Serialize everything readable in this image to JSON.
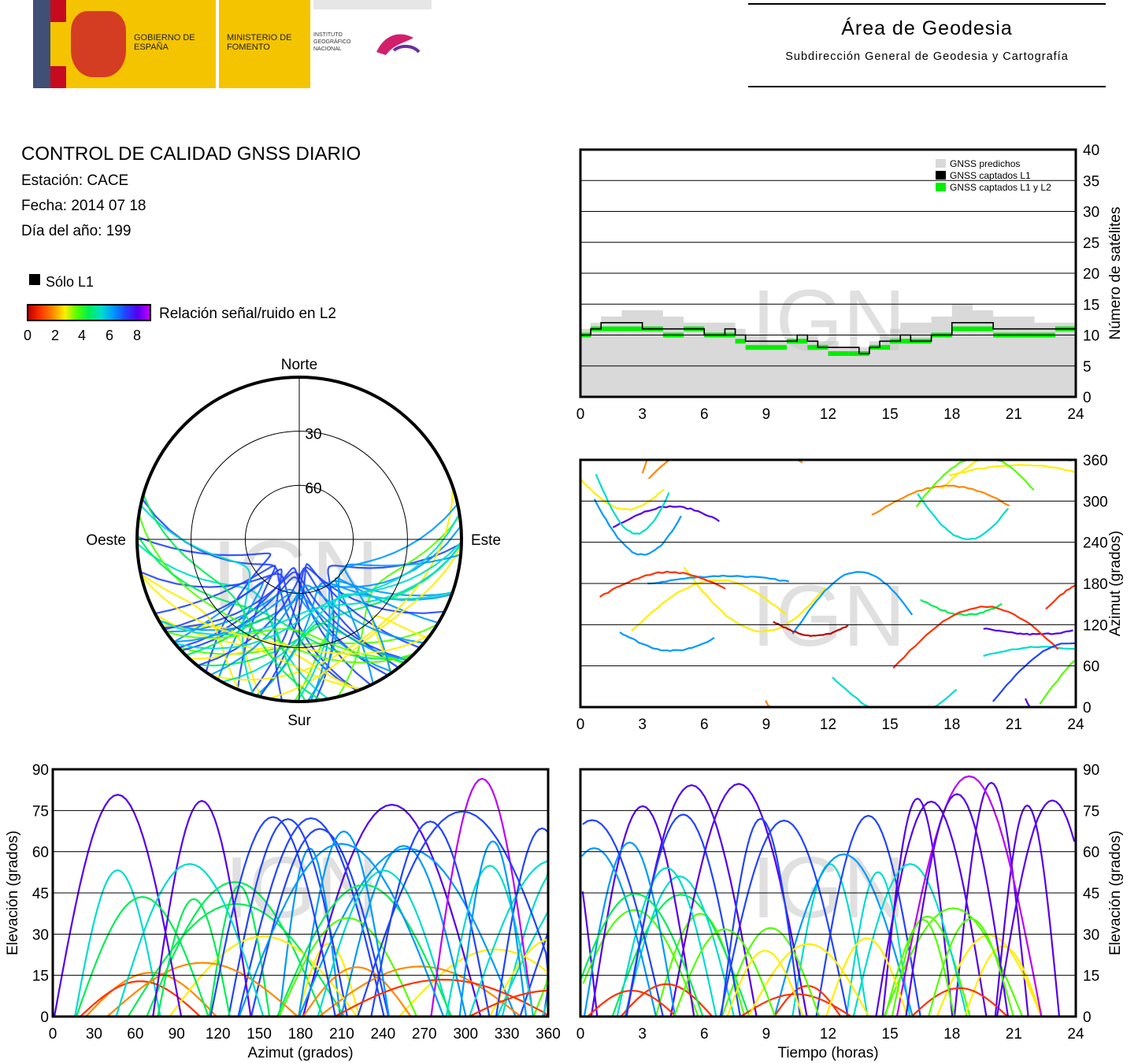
{
  "header": {
    "gobierno": "GOBIERNO DE ESPAÑA",
    "ministerio": "MINISTERIO DE FOMENTO",
    "instituto": "INSTITUTO GEOGRÁFICO NACIONAL",
    "area_title": "Área de Geodesia",
    "area_subtitle": "Subdirección General de Geodesia y Cartografía"
  },
  "report": {
    "title": "CONTROL DE CALIDAD GNSS DIARIO",
    "station": "Estación: CACE",
    "date": "Fecha: 2014 07 18",
    "doy": "Día del año: 199"
  },
  "legend": {
    "only_l1": "Sólo L1",
    "snr_label": "Relación señal/ruido en L2",
    "ticks": [
      "0",
      "2",
      "4",
      "6",
      "8"
    ],
    "colors": [
      "#c00000",
      "#ff3300",
      "#ff8800",
      "#ffee00",
      "#55ff00",
      "#00ee55",
      "#00ddcc",
      "#0099ff",
      "#2244ff",
      "#5500ee",
      "#bb00ff"
    ]
  },
  "watermark": "IGN",
  "chart_data": [
    {
      "id": "satellites",
      "type": "step",
      "ylabel": "Número de satélites",
      "x_ticks": [
        "0",
        "3",
        "6",
        "9",
        "12",
        "15",
        "18",
        "21",
        "24"
      ],
      "y_ticks": [
        "0",
        "5",
        "10",
        "15",
        "20",
        "25",
        "30",
        "35",
        "40"
      ],
      "xlim": [
        0,
        24
      ],
      "ylim": [
        0,
        40
      ],
      "legend": [
        "GNSS predichos",
        "GNSS captados L1",
        "GNSS captados L1 y L2"
      ],
      "x": [
        0,
        0.5,
        1,
        2,
        3,
        4,
        5,
        6,
        7,
        7.5,
        8,
        9,
        10,
        10.5,
        11,
        11.5,
        12,
        12.5,
        13,
        13.5,
        14,
        14.5,
        15,
        15.5,
        16,
        17,
        18,
        19,
        20,
        21,
        22,
        23,
        24
      ],
      "predicted": [
        11,
        12,
        13,
        14,
        14,
        13,
        12,
        12,
        12,
        11,
        10,
        9,
        9,
        10,
        10,
        9,
        9,
        8,
        8,
        8,
        9,
        10,
        11,
        12,
        12,
        13,
        15,
        14,
        13,
        13,
        12,
        12,
        12
      ],
      "l1": [
        10,
        11,
        12,
        12,
        11,
        11,
        11,
        10,
        11,
        10,
        9,
        9,
        9,
        10,
        9,
        8,
        8,
        8,
        8,
        7,
        8,
        9,
        9,
        10,
        9,
        10,
        12,
        12,
        11,
        11,
        11,
        11,
        11
      ],
      "l1l2": [
        10,
        11,
        11,
        11,
        11,
        10,
        11,
        10,
        10,
        9,
        8,
        8,
        9,
        9,
        8,
        8,
        7,
        7,
        7,
        7,
        8,
        8,
        9,
        9,
        9,
        10,
        11,
        11,
        10,
        10,
        10,
        11,
        11
      ]
    },
    {
      "id": "azimuth_time",
      "type": "scatter",
      "ylabel": "Azimut (grados)",
      "x_ticks": [
        "0",
        "3",
        "6",
        "9",
        "12",
        "15",
        "18",
        "21",
        "24"
      ],
      "y_ticks": [
        "0",
        "60",
        "120",
        "180",
        "240",
        "300",
        "360"
      ],
      "xlim": [
        0,
        24
      ],
      "ylim": [
        0,
        360
      ]
    },
    {
      "id": "skyplot",
      "type": "scatter",
      "labels": {
        "north": "Norte",
        "south": "Sur",
        "east": "Este",
        "west": "Oeste",
        "e30": "30",
        "e60": "60"
      }
    },
    {
      "id": "elev_azimuth",
      "type": "scatter",
      "xlabel": "Azimut (grados)",
      "ylabel": "Elevación (grados)",
      "x_ticks": [
        "0",
        "30",
        "60",
        "90",
        "120",
        "150",
        "180",
        "210",
        "240",
        "270",
        "300",
        "330",
        "360"
      ],
      "y_ticks": [
        "0",
        "15",
        "30",
        "45",
        "60",
        "75",
        "90"
      ],
      "xlim": [
        0,
        360
      ],
      "ylim": [
        0,
        90
      ]
    },
    {
      "id": "elev_time",
      "type": "scatter",
      "xlabel": "Tiempo (horas)",
      "ylabel": "Elevación (grados)",
      "x_ticks": [
        "0",
        "3",
        "6",
        "9",
        "12",
        "15",
        "18",
        "21",
        "24"
      ],
      "y_ticks": [
        "0",
        "15",
        "30",
        "45",
        "60",
        "75",
        "90"
      ],
      "xlim": [
        0,
        24
      ],
      "ylim": [
        0,
        90
      ]
    }
  ]
}
